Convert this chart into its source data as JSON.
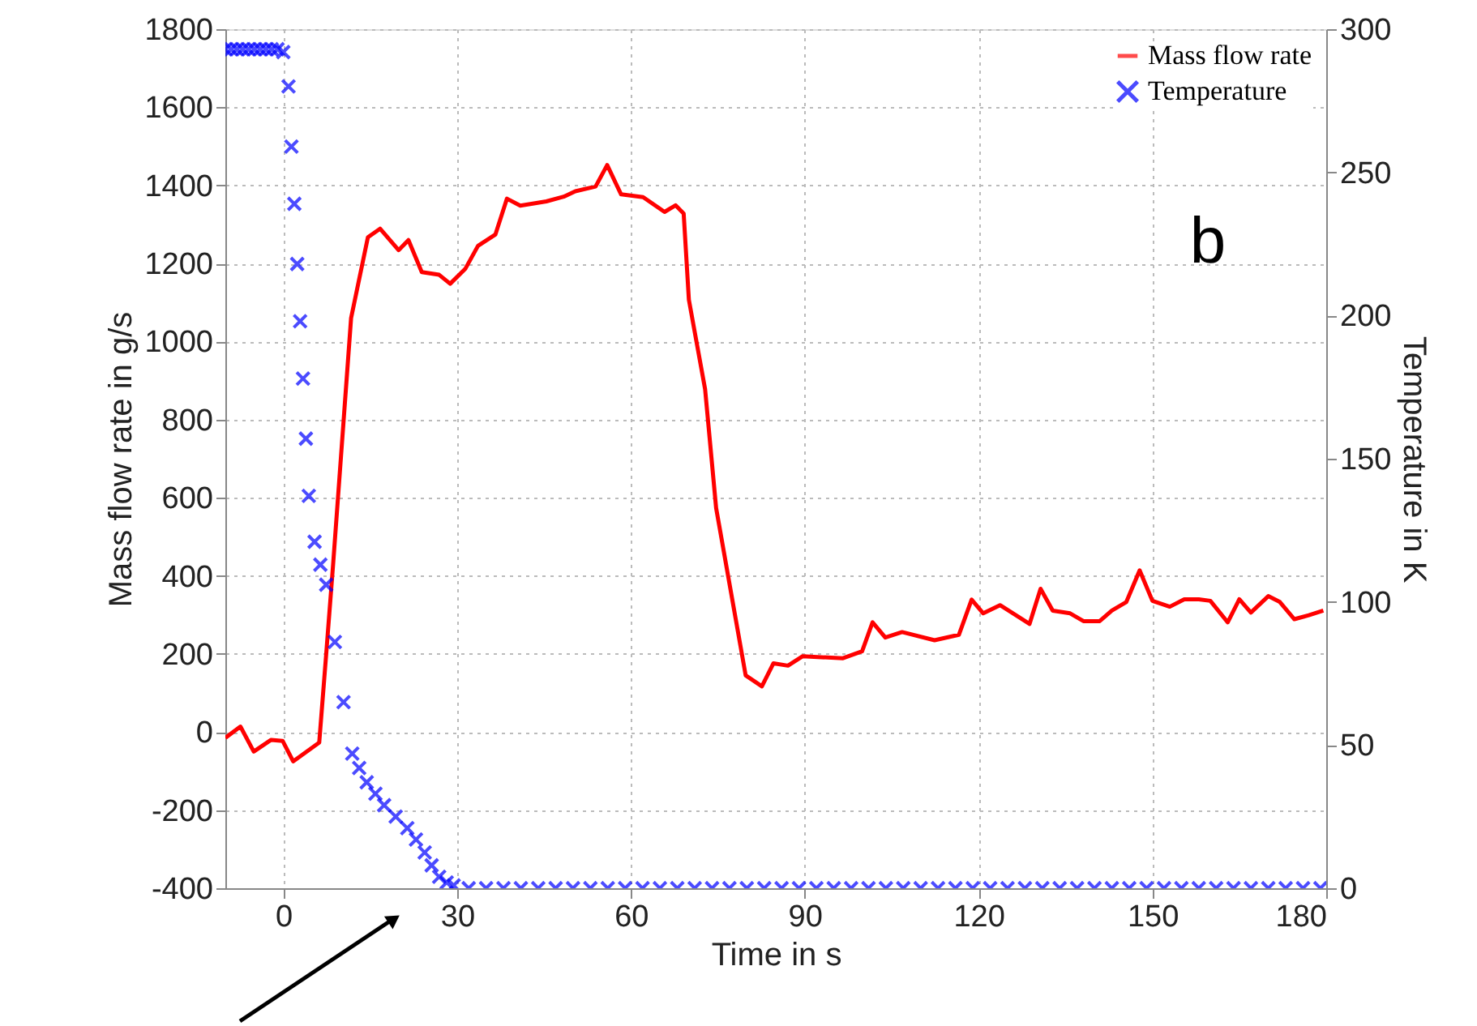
{
  "chart_data": {
    "type": "line",
    "xlabel": "Time in s",
    "ylabel": "Mass flow rate in g/s",
    "y2label": "Temperature in K",
    "annotations": [
      "b"
    ],
    "xlim": [
      -10,
      180
    ],
    "xticks": [
      0,
      30,
      60,
      90,
      120,
      150,
      180
    ],
    "ylim": [
      -400,
      1800
    ],
    "yticks": [
      -400,
      -200,
      0,
      200,
      400,
      600,
      800,
      1000,
      1200,
      1400,
      1600,
      1800
    ],
    "y2lim": [
      0,
      300
    ],
    "y2ticks": [
      0,
      50,
      100,
      150,
      200,
      250,
      300
    ],
    "grid": true,
    "legend": "top right",
    "series": [
      {
        "name": "Mass flow rate",
        "type": "line",
        "color": "#ff0000",
        "x": [
          -10,
          -7.4,
          -5.1,
          -2.1,
          -0.1,
          1.7,
          6.2,
          7.4,
          8.6,
          11.7,
          14.6,
          16.7,
          19.9,
          21.6,
          23.9,
          26.9,
          28.8,
          31.4,
          33.6,
          36.6,
          38.6,
          40.9,
          45.4,
          48.4,
          50.4,
          53.9,
          55.9,
          58.3,
          62.1,
          65.8,
          67.7,
          69.1,
          70,
          72.8,
          74.7,
          79.8,
          82.6,
          84.6,
          87.1,
          89.6,
          96.6,
          99.9,
          101.7,
          103.9,
          106.8,
          112.4,
          116.6,
          118.8,
          120.8,
          123.7,
          128.8,
          130.7,
          132.8,
          135.8,
          138.1,
          140.9,
          143,
          145.5,
          147.8,
          150,
          153,
          155.5,
          158,
          160,
          163,
          165,
          167,
          170,
          172,
          174.5,
          177,
          179.5
        ],
        "values": [
          -15,
          14,
          -50,
          -20,
          -23,
          -75,
          -27,
          199,
          430,
          1060,
          1267,
          1289,
          1234,
          1260,
          1178,
          1171,
          1148,
          1186,
          1245,
          1274,
          1366,
          1348,
          1359,
          1371,
          1385,
          1397,
          1452,
          1377,
          1370,
          1332,
          1349,
          1328,
          1107,
          878,
          574,
          145,
          117,
          176,
          170,
          194,
          189,
          207,
          281,
          242,
          256,
          235,
          249,
          339,
          304,
          325,
          277,
          367,
          311,
          304,
          284,
          284,
          311,
          333,
          414,
          336,
          321,
          340,
          340,
          336,
          281,
          340,
          306,
          348,
          333,
          289,
          299,
          311
        ]
      },
      {
        "name": "Temperature",
        "type": "scatter",
        "axis": "y2",
        "marker": "cross",
        "color": "#0000ff",
        "x": [
          -10,
          -9,
          -8,
          -7,
          -6,
          -5,
          -4,
          -3,
          -2,
          -1,
          0,
          0.9,
          1.4,
          1.9,
          2.4,
          2.9,
          3.4,
          3.9,
          4.4,
          5.4,
          6.4,
          7.4,
          8.9,
          10.4,
          11.9,
          13.1,
          14.4,
          15.9,
          17.4,
          19.4,
          21.4,
          22.9,
          24.4,
          25.6,
          26.9,
          28.2,
          29.4,
          32,
          35,
          38,
          41,
          44,
          47,
          50,
          53,
          56,
          59,
          62,
          65,
          68,
          71,
          74,
          77,
          80,
          83,
          86,
          89,
          92,
          95,
          98,
          101,
          104,
          107,
          110,
          113,
          116,
          119,
          122,
          125,
          128,
          131,
          134,
          137,
          140,
          143,
          146,
          149,
          152,
          155,
          158,
          161,
          164,
          167,
          170,
          173,
          176,
          179
        ],
        "values": [
          293,
          293,
          293,
          293,
          293,
          293,
          293,
          293,
          293,
          293,
          292,
          280,
          259,
          239,
          218,
          198,
          178,
          157,
          137,
          121,
          113,
          106,
          86,
          65,
          47,
          42,
          37,
          33,
          29,
          25,
          21,
          17,
          12.5,
          8,
          4,
          2,
          1,
          0,
          0,
          0,
          0,
          0,
          0,
          0,
          0,
          0,
          0,
          0,
          0,
          0,
          0,
          0,
          0,
          0,
          0,
          0,
          0,
          0,
          0,
          0,
          0,
          0,
          0,
          0,
          0,
          0,
          0,
          0,
          0,
          0,
          0,
          0,
          0,
          0,
          0,
          0,
          0,
          0,
          0,
          0,
          0,
          0,
          0,
          0,
          0,
          0,
          0
        ]
      }
    ]
  }
}
